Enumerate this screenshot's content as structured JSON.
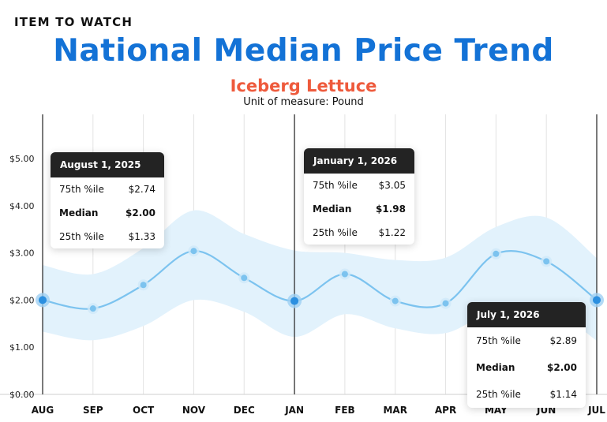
{
  "header": {
    "kicker": "ITEM TO WATCH",
    "title": "National Median Price Trend",
    "subtitle": "Iceberg Lettuce",
    "unit": "Unit of measure: Pound"
  },
  "colors": {
    "title": "#1372d6",
    "subtitle": "#ee5a3c",
    "line": "#7cc3ef",
    "band": "#e2f2fc",
    "marker": "#2b8fe0"
  },
  "chart_data": {
    "type": "line",
    "categories": [
      "AUG",
      "SEP",
      "OCT",
      "NOV",
      "DEC",
      "JAN",
      "FEB",
      "MAR",
      "APR",
      "MAY",
      "JUN",
      "JUL"
    ],
    "yticks": [
      "$0.00",
      "$1.00",
      "$2.00",
      "$3.00",
      "$4.00",
      "$5.00"
    ],
    "ylim": [
      0,
      6
    ],
    "grid": true,
    "series": [
      {
        "values": [
          2.0,
          1.82,
          2.32,
          3.04,
          2.47,
          1.98,
          2.55,
          1.98,
          1.93,
          2.98,
          2.82,
          2.0
        ]
      }
    ],
    "band_upper": [
      2.74,
      2.55,
      3.1,
      3.9,
      3.4,
      3.05,
      3.0,
      2.85,
      2.9,
      3.55,
      3.75,
      2.89
    ],
    "band_lower": [
      1.33,
      1.15,
      1.45,
      2.0,
      1.75,
      1.22,
      1.7,
      1.4,
      1.3,
      1.8,
      1.85,
      1.14
    ],
    "highlight_indices": [
      0,
      5,
      11
    ],
    "tooltips": [
      {
        "date": "August 1, 2025",
        "rows": [
          {
            "label": "75th %ile",
            "value": "$2.74"
          },
          {
            "label": "Median",
            "value": "$2.00"
          },
          {
            "label": "25th %ile",
            "value": "$1.33"
          }
        ]
      },
      {
        "date": "January 1, 2026",
        "rows": [
          {
            "label": "75th %ile",
            "value": "$3.05"
          },
          {
            "label": "Median",
            "value": "$1.98"
          },
          {
            "label": "25th %ile",
            "value": "$1.22"
          }
        ]
      },
      {
        "date": "July 1, 2026",
        "rows": [
          {
            "label": "75th %ile",
            "value": "$2.89"
          },
          {
            "label": "Median",
            "value": "$2.00"
          },
          {
            "label": "25th %ile",
            "value": "$1.14"
          }
        ]
      }
    ]
  }
}
